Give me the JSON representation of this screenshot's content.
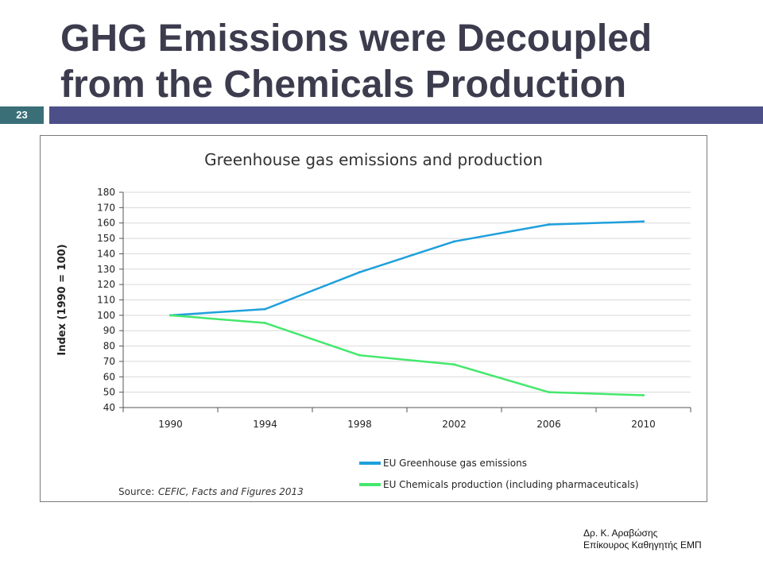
{
  "slide": {
    "title_line1": "GHG Emissions were Decoupled",
    "title_line2": "from the Chemicals Production",
    "number": "23",
    "author_line1": "Δρ. Κ. Αραβώσης",
    "author_line2": "Επίκουρος Καθηγητής ΕΜΠ"
  },
  "colors": {
    "title": "#3c3c4e",
    "title_bar": "#4d5088",
    "slide_number_bg": "#3a6f78",
    "emissions_line": "#1ea0dc",
    "production_line": "#44e86c",
    "grid": "#d9d9d9"
  },
  "chart_data": {
    "type": "line",
    "title": "Greenhouse gas emissions and production",
    "xlabel": "",
    "ylabel": "Index (1990 = 100)",
    "categories": [
      "1990",
      "1994",
      "1998",
      "2002",
      "2006",
      "2010"
    ],
    "x": [
      1990,
      1994,
      1998,
      2002,
      2006,
      2010
    ],
    "ylim": [
      40,
      180
    ],
    "yticks": [
      40,
      50,
      60,
      70,
      80,
      90,
      100,
      110,
      120,
      130,
      140,
      150,
      160,
      170,
      180
    ],
    "grid": true,
    "legend_position": "bottom",
    "series": [
      {
        "name": "EU Greenhouse gas emissions",
        "color": "#1ea0dc",
        "values": [
          100,
          104,
          128,
          148,
          159,
          161
        ]
      },
      {
        "name": "EU Chemicals production (including pharmaceuticals)",
        "color": "#44e86c",
        "values": [
          100,
          95,
          74,
          68,
          50,
          48
        ]
      }
    ],
    "source_label": "Source:",
    "source_text": "CEFIC, Facts and Figures 2013"
  }
}
